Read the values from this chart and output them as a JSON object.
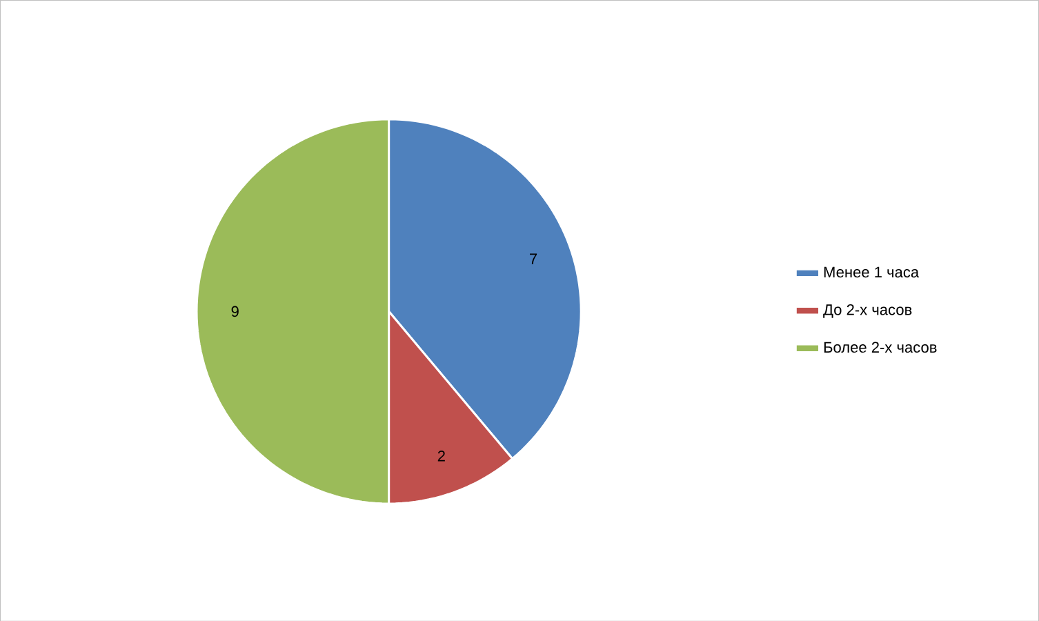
{
  "chart_data": {
    "type": "pie",
    "categories": [
      "Менее 1 часа",
      "До 2-х часов",
      "Более 2-х часов"
    ],
    "values": [
      7,
      2,
      9
    ],
    "colors": [
      "#4f81bd",
      "#c0504d",
      "#9bbb59"
    ],
    "data_labels": true,
    "legend": "right"
  }
}
